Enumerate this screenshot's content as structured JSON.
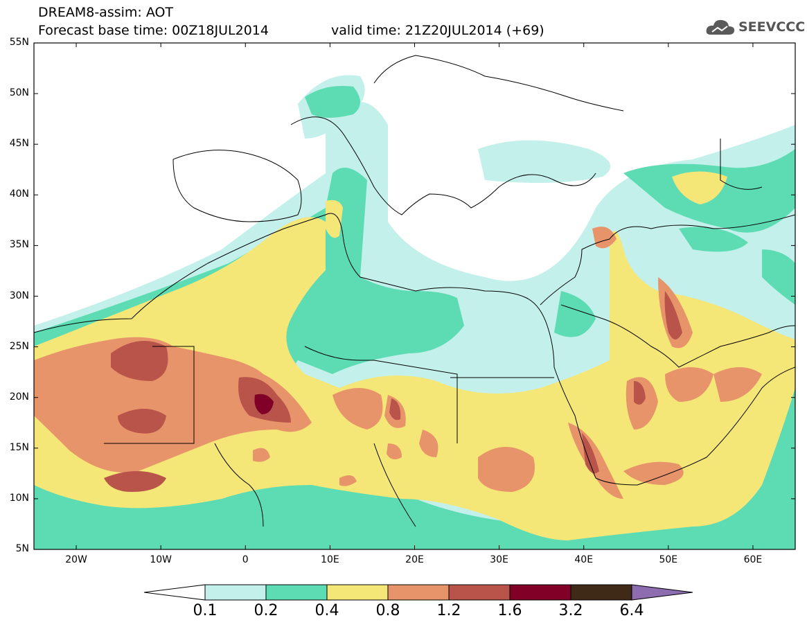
{
  "header": {
    "title_line1": "DREAM8-assim: AOT",
    "title_line2": "Forecast base time: 00Z18JUL2014",
    "valid_time": "valid time: 21Z20JUL2014 (+69)",
    "logo_text": "SEEVCCC"
  },
  "axes": {
    "lat_labels": [
      "55N",
      "50N",
      "45N",
      "40N",
      "35N",
      "30N",
      "25N",
      "20N",
      "15N",
      "10N",
      "5N"
    ],
    "lon_labels": [
      "20W",
      "10W",
      "0",
      "10E",
      "20E",
      "30E",
      "40E",
      "50E",
      "60E"
    ],
    "lat_range": [
      5,
      55
    ],
    "lon_range": [
      -25,
      65
    ]
  },
  "colorbar": {
    "labels": [
      "0.1",
      "0.2",
      "0.4",
      "0.8",
      "1.2",
      "1.6",
      "3.2",
      "6.4"
    ],
    "colors": [
      "#ffffff",
      "#c3f0ea",
      "#5ddcb4",
      "#f5e678",
      "#e8946a",
      "#b8544a",
      "#800028",
      "#3f2a18",
      "#8e6cb0"
    ]
  },
  "map_data": {
    "variable": "AOT",
    "region": "North Africa, Europe, Middle East",
    "hotspots": [
      {
        "lon": 2,
        "lat": 19.5,
        "level": "3.2"
      },
      {
        "lon": -12,
        "lat": 24,
        "level": "1.6"
      },
      {
        "lon": -12,
        "lat": 17,
        "level": "1.6"
      },
      {
        "lon": -14,
        "lat": 11.5,
        "level": "1.6"
      }
    ]
  }
}
